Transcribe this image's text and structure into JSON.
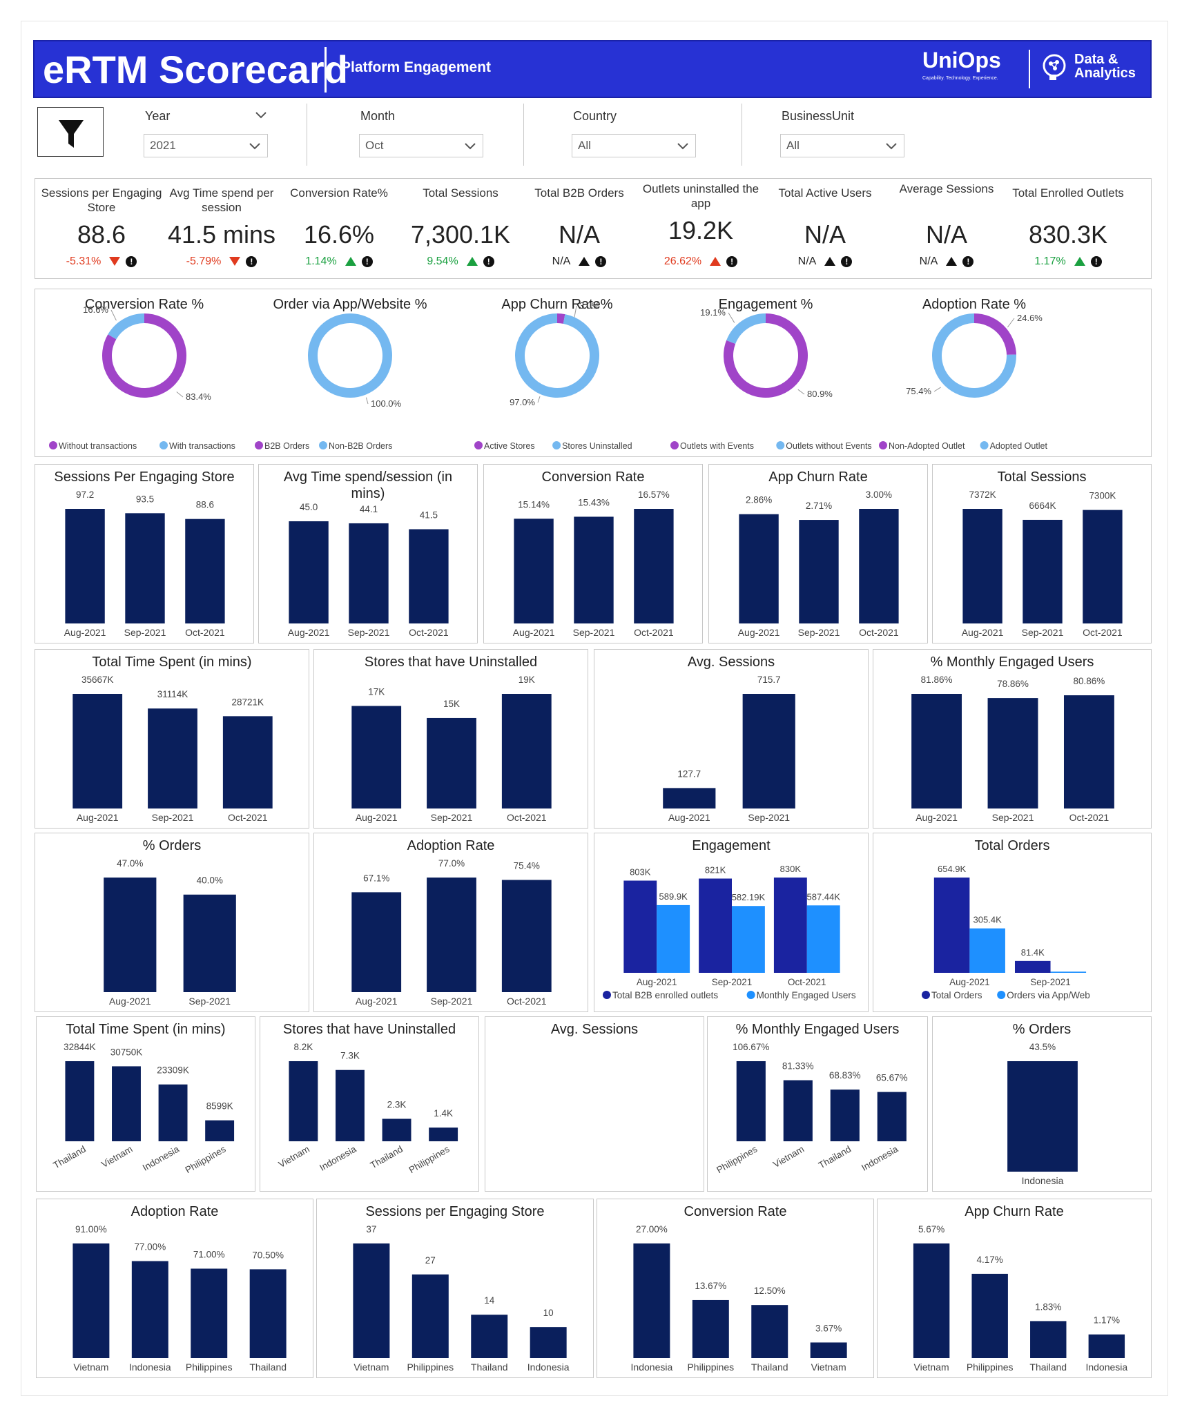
{
  "header": {
    "title": "eRTM Scorecard",
    "subtitle": "Platform Engagement",
    "logo_uniops": "UniOps",
    "logo_uniops_tagline": "Capability. Technology. Experience.",
    "logo_data_line1": "Data &",
    "logo_data_line2": "Analytics"
  },
  "filters": {
    "year": {
      "label": "Year",
      "value": "2021"
    },
    "month": {
      "label": "Month",
      "value": "Oct"
    },
    "country": {
      "label": "Country",
      "value": "All"
    },
    "business_unit": {
      "label": "BusinessUnit",
      "value": "All"
    }
  },
  "kpis": [
    {
      "title": "Sessions per Engaging Store",
      "value": "88.6",
      "delta": "-5.31%",
      "dir": "down",
      "color": "#e03a1e"
    },
    {
      "title": "Avg Time spend per session",
      "value": "41.5 mins",
      "delta": "-5.79%",
      "dir": "down",
      "color": "#e03a1e"
    },
    {
      "title": "Conversion Rate%",
      "value": "16.6%",
      "delta": "1.14%",
      "dir": "up",
      "color": "#1aa040"
    },
    {
      "title": "Total Sessions",
      "value": "7,300.1K",
      "delta": "9.54%",
      "dir": "up",
      "color": "#1aa040"
    },
    {
      "title": "Total B2B Orders",
      "value": "N/A",
      "delta": "N/A",
      "dir": "upk",
      "color": "#222222"
    },
    {
      "title": "Outlets uninstalled the app",
      "value": "19.2K",
      "delta": "26.62%",
      "dir": "upred",
      "color": "#e03a1e"
    },
    {
      "title": "Total Active Users",
      "value": "N/A",
      "delta": "N/A",
      "dir": "upk",
      "color": "#222222"
    },
    {
      "title": "Average Sessions",
      "value": "N/A",
      "delta": "N/A",
      "dir": "upk",
      "color": "#222222"
    },
    {
      "title": "Total Enrolled Outlets",
      "value": "830.3K",
      "delta": "1.17%",
      "dir": "up",
      "color": "#1aa040"
    }
  ],
  "colors": {
    "navy": "#0a1f5c",
    "dark_blue": "#1a23a0",
    "light_blue": "#1e90ff",
    "purple": "#a044c8",
    "sky": "#74b8f0"
  },
  "donuts": [
    {
      "title": "Conversion Rate %",
      "slices": [
        {
          "label": "Without transactions",
          "value": 83.4,
          "color": "#a044c8"
        },
        {
          "label": "With transactions",
          "value": 16.6,
          "color": "#74b8f0"
        }
      ],
      "labels": [
        "16.6%",
        "83.4%"
      ]
    },
    {
      "title": "Order via App/Website %",
      "slices": [
        {
          "label": "B2B Orders",
          "value": 0,
          "color": "#a044c8"
        },
        {
          "label": "Non-B2B Orders",
          "value": 100,
          "color": "#74b8f0"
        }
      ],
      "labels": [
        "100.0%"
      ]
    },
    {
      "title": "App Churn Rate%",
      "slices": [
        {
          "label": "Active Stores",
          "value": 3.0,
          "color": "#a044c8"
        },
        {
          "label": "Stores Uninstalled",
          "value": 97.0,
          "color": "#74b8f0"
        }
      ],
      "labels": [
        "3.0%",
        "97.0%"
      ]
    },
    {
      "title": "Engagement %",
      "slices": [
        {
          "label": "Outlets with Events",
          "value": 80.9,
          "color": "#a044c8"
        },
        {
          "label": "Outlets without Events",
          "value": 19.1,
          "color": "#74b8f0"
        }
      ],
      "labels": [
        "19.1%",
        "80.9%"
      ]
    },
    {
      "title": "Adoption Rate %",
      "slices": [
        {
          "label": "Non-Adopted Outlet",
          "value": 24.6,
          "color": "#a044c8"
        },
        {
          "label": "Adopted Outlet",
          "value": 75.4,
          "color": "#74b8f0"
        }
      ],
      "labels": [
        "24.6%",
        "75.4%"
      ]
    }
  ],
  "chart_data": [
    {
      "type": "bar",
      "title": "Sessions Per Engaging Store",
      "categories": [
        "Aug-2021",
        "Sep-2021",
        "Oct-2021"
      ],
      "values": [
        97.2,
        93.5,
        88.6
      ],
      "labels": [
        "97.2",
        "93.5",
        "88.6"
      ]
    },
    {
      "type": "bar",
      "title": "Avg Time spend/session (in mins)",
      "categories": [
        "Aug-2021",
        "Sep-2021",
        "Oct-2021"
      ],
      "values": [
        45.0,
        44.1,
        41.5
      ],
      "labels": [
        "45.0",
        "44.1",
        "41.5"
      ]
    },
    {
      "type": "bar",
      "title": "Conversion Rate",
      "categories": [
        "Aug-2021",
        "Sep-2021",
        "Oct-2021"
      ],
      "values": [
        15.14,
        15.43,
        16.57
      ],
      "labels": [
        "15.14%",
        "15.43%",
        "16.57%"
      ]
    },
    {
      "type": "bar",
      "title": "App Churn Rate",
      "categories": [
        "Aug-2021",
        "Sep-2021",
        "Oct-2021"
      ],
      "values": [
        2.86,
        2.71,
        3.0
      ],
      "labels": [
        "2.86%",
        "2.71%",
        "3.00%"
      ]
    },
    {
      "type": "bar",
      "title": "Total Sessions",
      "categories": [
        "Aug-2021",
        "Sep-2021",
        "Oct-2021"
      ],
      "values": [
        7372,
        6664,
        7300
      ],
      "labels": [
        "7372K",
        "6664K",
        "7300K"
      ]
    },
    {
      "type": "bar",
      "title": "Total Time Spent (in mins)",
      "categories": [
        "Aug-2021",
        "Sep-2021",
        "Oct-2021"
      ],
      "values": [
        35667,
        31114,
        28721
      ],
      "labels": [
        "35667K",
        "31114K",
        "28721K"
      ]
    },
    {
      "type": "bar",
      "title": "Stores that have Uninstalled",
      "categories": [
        "Aug-2021",
        "Sep-2021",
        "Oct-2021"
      ],
      "values": [
        17,
        15,
        19
      ],
      "labels": [
        "17K",
        "15K",
        "19K"
      ]
    },
    {
      "type": "bar",
      "title": "Avg. Sessions",
      "categories": [
        "Aug-2021",
        "Sep-2021"
      ],
      "values": [
        127.7,
        715.7
      ],
      "labels": [
        "127.7",
        "715.7"
      ]
    },
    {
      "type": "bar",
      "title": "% Monthly Engaged Users",
      "categories": [
        "Aug-2021",
        "Sep-2021",
        "Oct-2021"
      ],
      "values": [
        81.86,
        78.86,
        80.86
      ],
      "labels": [
        "81.86%",
        "78.86%",
        "80.86%"
      ]
    },
    {
      "type": "bar",
      "title": "% Orders",
      "categories": [
        "Aug-2021",
        "Sep-2021"
      ],
      "values": [
        47.0,
        40.0
      ],
      "labels": [
        "47.0%",
        "40.0%"
      ]
    },
    {
      "type": "bar",
      "title": "Adoption Rate",
      "categories": [
        "Aug-2021",
        "Sep-2021",
        "Oct-2021"
      ],
      "values": [
        67.1,
        77.0,
        75.4
      ],
      "labels": [
        "67.1%",
        "77.0%",
        "75.4%"
      ]
    },
    {
      "type": "bar",
      "title": "Engagement",
      "categories": [
        "Aug-2021",
        "Sep-2021",
        "Oct-2021"
      ],
      "series": [
        {
          "name": "Total B2B enrolled outlets",
          "values": [
            803,
            821,
            830
          ],
          "labels": [
            "803K",
            "821K",
            "830K"
          ]
        },
        {
          "name": "Monthly Engaged Users",
          "values": [
            589.9,
            582.19,
            587.44
          ],
          "labels": [
            "589.9K",
            "582.19K",
            "587.44K"
          ]
        }
      ]
    },
    {
      "type": "bar",
      "title": "Total Orders",
      "categories": [
        "Aug-2021",
        "Sep-2021"
      ],
      "series": [
        {
          "name": "Total Orders",
          "values": [
            654.9,
            81.4
          ],
          "labels": [
            "654.9K",
            "81.4K"
          ]
        },
        {
          "name": "Orders via App/Web",
          "values": [
            305.4,
            8
          ],
          "labels": [
            "305.4K",
            ""
          ]
        }
      ]
    },
    {
      "type": "bar",
      "title": "Total Time Spent (in mins)",
      "categories": [
        "Thailand",
        "Vietnam",
        "Indonesia",
        "Philippines"
      ],
      "values": [
        32844,
        30750,
        23309,
        8599
      ],
      "labels": [
        "32844K",
        "30750K",
        "23309K",
        "8599K"
      ]
    },
    {
      "type": "bar",
      "title": "Stores that have Uninstalled",
      "categories": [
        "Vietnam",
        "Indonesia",
        "Thailand",
        "Philippines"
      ],
      "values": [
        8.2,
        7.3,
        2.3,
        1.4
      ],
      "labels": [
        "8.2K",
        "7.3K",
        "2.3K",
        "1.4K"
      ]
    },
    {
      "type": "bar",
      "title": "Avg. Sessions",
      "categories": [],
      "values": [],
      "labels": []
    },
    {
      "type": "bar",
      "title": "% Monthly Engaged Users",
      "categories": [
        "Philippines",
        "Vietnam",
        "Thailand",
        "Indonesia"
      ],
      "values": [
        106.67,
        81.33,
        68.83,
        65.67
      ],
      "labels": [
        "106.67%",
        "81.33%",
        "68.83%",
        "65.67%"
      ]
    },
    {
      "type": "bar",
      "title": "% Orders",
      "categories": [
        "Indonesia"
      ],
      "values": [
        43.5
      ],
      "labels": [
        "43.5%"
      ]
    },
    {
      "type": "bar",
      "title": "Adoption Rate",
      "categories": [
        "Vietnam",
        "Indonesia",
        "Philippines",
        "Thailand"
      ],
      "values": [
        91.0,
        77.0,
        71.0,
        70.5
      ],
      "labels": [
        "91.00%",
        "77.00%",
        "71.00%",
        "70.50%"
      ]
    },
    {
      "type": "bar",
      "title": "Sessions per Engaging Store",
      "categories": [
        "Vietnam",
        "Philippines",
        "Thailand",
        "Indonesia"
      ],
      "values": [
        37,
        27,
        14,
        10
      ],
      "labels": [
        "37",
        "27",
        "14",
        "10"
      ]
    },
    {
      "type": "bar",
      "title": "Conversion Rate",
      "categories": [
        "Indonesia",
        "Philippines",
        "Thailand",
        "Vietnam"
      ],
      "values": [
        27.0,
        13.67,
        12.5,
        3.67
      ],
      "labels": [
        "27.00%",
        "13.67%",
        "12.50%",
        "3.67%"
      ]
    },
    {
      "type": "bar",
      "title": "App Churn Rate",
      "categories": [
        "Vietnam",
        "Philippines",
        "Thailand",
        "Indonesia"
      ],
      "values": [
        5.67,
        4.17,
        1.83,
        1.17
      ],
      "labels": [
        "5.67%",
        "4.17%",
        "1.83%",
        "1.17%"
      ]
    }
  ]
}
